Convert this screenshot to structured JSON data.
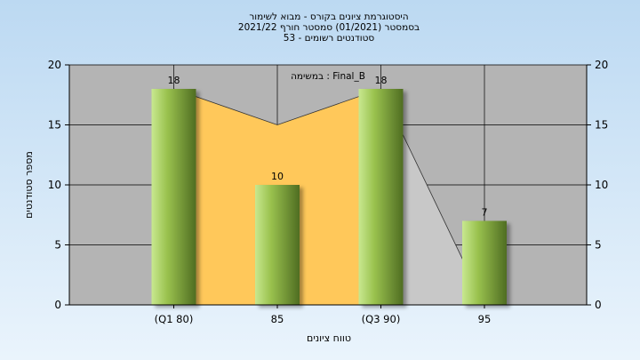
{
  "chart_data": {
    "type": "bar",
    "title_lines": [
      "היסטוגרמת ציונים בקורס - מבוא לשימור",
      "בסמסטר  (01/2021)  סמסטר חורף 2021/22",
      "סטודנטים רשומים - 53"
    ],
    "ylabel": "מספר סטודנטים",
    "xlabel": "טווח ציונים",
    "ylim": [
      0,
      20
    ],
    "yticks": [
      0,
      5,
      10,
      15,
      20
    ],
    "categories": [
      "(Q1 80)",
      "85",
      "(Q3 90)",
      "95"
    ],
    "values": [
      18,
      10,
      18,
      7
    ],
    "area_values": [
      18,
      15,
      18,
      0
    ],
    "annotation": "במשימה : Final_B",
    "grid": true
  },
  "colors": {
    "background_top": "#bcd9f2",
    "background_bottom": "#eaf4fc",
    "plot_background": "#b4b4b4",
    "area_fill": "#ffc85a",
    "area_fill_light": "#c8c8c8",
    "bar_light": "#c8e890",
    "bar_mid": "#9ac24e",
    "bar_dark": "#4f6d22",
    "axis": "#000000",
    "grid": "#000000"
  }
}
